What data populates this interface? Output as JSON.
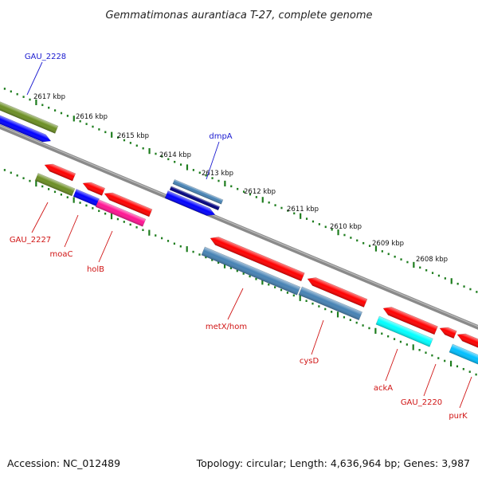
{
  "title": "Gemmatimonas aurantiaca T-27, complete genome",
  "accession": "Accession: NC_012489",
  "topology": "Topology: circular; Length: 4,636,964 bp; Genes: 3,987",
  "scale_labels": [
    "2617 kbp",
    "2616 kbp",
    "2615 kbp",
    "2614 kbp",
    "2613 kbp",
    "2612 kbp",
    "2611 kbp",
    "2610 kbp",
    "2609 kbp",
    "2608 kbp"
  ],
  "forward_genes": [
    {
      "label": "GAU_2228",
      "color": "#6b8e23"
    },
    {
      "label": "dmpA",
      "color": "#4682b4"
    }
  ],
  "reverse_genes": [
    {
      "label": "GAU_2227",
      "color": "#6b8e23"
    },
    {
      "label": "moaC",
      "color": "#0000ff"
    },
    {
      "label": "holB",
      "color": "#ff1493"
    },
    {
      "label": "metX/hom",
      "color": "#4682b4"
    },
    {
      "label": "cysD",
      "color": "#4682b4"
    },
    {
      "label": "ackA",
      "color": "#00ffff"
    },
    {
      "label": "GAU_2220",
      "color": "#00bfff"
    },
    {
      "label": "purK",
      "color": "#ff0000"
    }
  ],
  "colors": {
    "backbone": "#888888",
    "tick": "#1e7d1e",
    "cds": "#ff0000",
    "navy": "#000080",
    "blue": "#0000ff",
    "olive": "#6b8e23",
    "steelblue": "#4682b4",
    "pink": "#ff1493",
    "cyan": "#00ffff",
    "skyblue": "#00bfff"
  }
}
